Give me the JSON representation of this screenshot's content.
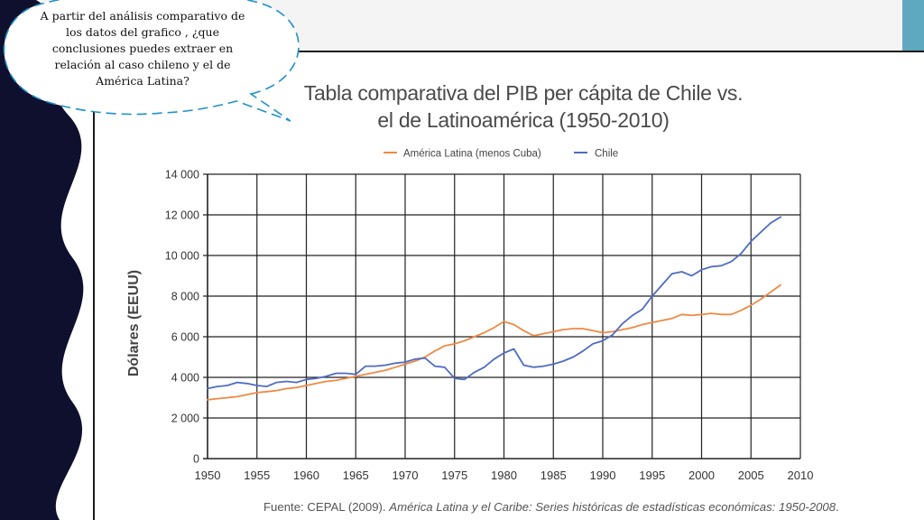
{
  "slide": {
    "question": "A partir del análisis comparativo de los datos del grafico , ¿que conclusiones puedes extraer en relación al caso chileno y el de América Latina?",
    "colors": {
      "left_band": "#0f0f2e",
      "top_band": "#f4f4f4",
      "accent": "#5ea9c0",
      "bubble_border": "#1e90c8"
    }
  },
  "chart_data": {
    "type": "line",
    "title_line1": "Tabla comparativa del PIB per cápita de Chile vs.",
    "title_line2": "el de Latinoamérica (1950-2010)",
    "ylabel": "Dólares (EEUU)",
    "xlabel": "",
    "xlim": [
      1950,
      2010
    ],
    "ylim": [
      0,
      14000
    ],
    "x_ticks": [
      "1950",
      "1955",
      "1960",
      "1965",
      "1970",
      "1975",
      "1980",
      "1985",
      "1990",
      "1995",
      "2000",
      "2005",
      "2010"
    ],
    "y_ticks": [
      "0",
      "2 000",
      "4 000",
      "6 000",
      "8 000",
      "10 000",
      "12 000",
      "14 000"
    ],
    "grid": true,
    "legend_position": "top",
    "series": [
      {
        "name": "América Latina (menos Cuba)",
        "color": "#ee8a45",
        "x": [
          1950,
          1951,
          1952,
          1953,
          1954,
          1955,
          1956,
          1957,
          1958,
          1959,
          1960,
          1961,
          1962,
          1963,
          1964,
          1965,
          1966,
          1967,
          1968,
          1969,
          1970,
          1971,
          1972,
          1973,
          1974,
          1975,
          1976,
          1977,
          1978,
          1979,
          1980,
          1981,
          1982,
          1983,
          1984,
          1985,
          1986,
          1987,
          1988,
          1989,
          1990,
          1991,
          1992,
          1993,
          1994,
          1995,
          1996,
          1997,
          1998,
          1999,
          2000,
          2001,
          2002,
          2003,
          2004,
          2005,
          2006,
          2007,
          2008
        ],
        "values": [
          2900,
          2950,
          3000,
          3050,
          3150,
          3250,
          3300,
          3350,
          3450,
          3500,
          3600,
          3700,
          3800,
          3850,
          3950,
          4050,
          4150,
          4250,
          4350,
          4500,
          4650,
          4800,
          5000,
          5300,
          5550,
          5650,
          5800,
          6000,
          6200,
          6450,
          6750,
          6600,
          6300,
          6050,
          6150,
          6250,
          6350,
          6400,
          6400,
          6300,
          6200,
          6250,
          6350,
          6450,
          6600,
          6700,
          6800,
          6900,
          7100,
          7050,
          7100,
          7150,
          7100,
          7100,
          7300,
          7550,
          7850,
          8200,
          8550
        ]
      },
      {
        "name": "Chile",
        "color": "#4f6cc3",
        "x": [
          1950,
          1951,
          1952,
          1953,
          1954,
          1955,
          1956,
          1957,
          1958,
          1959,
          1960,
          1961,
          1962,
          1963,
          1964,
          1965,
          1966,
          1967,
          1968,
          1969,
          1970,
          1971,
          1972,
          1973,
          1974,
          1975,
          1976,
          1977,
          1978,
          1979,
          1980,
          1981,
          1982,
          1983,
          1984,
          1985,
          1986,
          1987,
          1988,
          1989,
          1990,
          1991,
          1992,
          1993,
          1994,
          1995,
          1996,
          1997,
          1998,
          1999,
          2000,
          2001,
          2002,
          2003,
          2004,
          2005,
          2006,
          2007,
          2008
        ],
        "values": [
          3450,
          3550,
          3600,
          3750,
          3700,
          3600,
          3550,
          3750,
          3800,
          3750,
          3900,
          3950,
          4050,
          4200,
          4200,
          4150,
          4550,
          4550,
          4600,
          4700,
          4750,
          4900,
          4950,
          4550,
          4500,
          3950,
          3900,
          4250,
          4500,
          4900,
          5200,
          5400,
          4600,
          4500,
          4550,
          4650,
          4800,
          5000,
          5300,
          5650,
          5800,
          6100,
          6650,
          7050,
          7350,
          8000,
          8550,
          9100,
          9200,
          9000,
          9300,
          9450,
          9500,
          9700,
          10100,
          10700,
          11150,
          11600,
          11900
        ]
      }
    ],
    "source_prefix": "Fuente: CEPAL (2009). ",
    "source_title": "América Latina y el Caribe: Series históricas de estadísticas económicas: 1950-2008",
    "source_suffix": "."
  }
}
